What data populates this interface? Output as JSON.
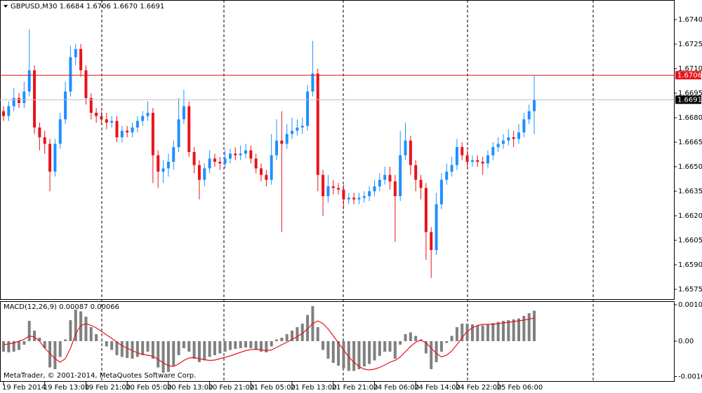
{
  "chart_data": [
    {
      "type": "candlestick",
      "title": "GBPUSD,M30  1.6684 1.6706 1.6670 1.6691",
      "footer": "MetaTrader, © 2001-2014, MetaQuotes Software Corp.",
      "categories": [
        "19 Feb 2014",
        null,
        null,
        null,
        null,
        null,
        null,
        null,
        "19 Feb 13:00",
        null,
        null,
        null,
        null,
        null,
        null,
        null,
        "19 Feb 21:00",
        null,
        null,
        null,
        null,
        null,
        null,
        null,
        "20 Feb 05:00",
        null,
        null,
        null,
        null,
        null,
        null,
        null,
        "20 Feb 13:00",
        null,
        null,
        null,
        null,
        null,
        null,
        null,
        "20 Feb 21:00",
        null,
        null,
        null,
        null,
        null,
        null,
        null,
        "21 Feb 05:00",
        null,
        null,
        null,
        null,
        null,
        null,
        null,
        "21 Feb 13:00",
        null,
        null,
        null,
        null,
        null,
        null,
        null,
        "21 Feb 21:00",
        null,
        null,
        null,
        null,
        null,
        null,
        null,
        "24 Feb 06:00",
        null,
        null,
        null,
        null,
        null,
        null,
        null,
        "24 Feb 14:00",
        null,
        null,
        null,
        null,
        null,
        null,
        null,
        "24 Feb 22:00",
        null,
        null,
        null,
        null,
        null,
        null,
        null,
        "25 Feb 06:00",
        null,
        null,
        null,
        null,
        null,
        null,
        null
      ],
      "open": [
        1.6684,
        1.6681,
        1.6687,
        1.6692,
        1.6689,
        1.6696,
        1.6709,
        1.6674,
        1.6668,
        1.6664,
        1.6647,
        1.6664,
        1.6679,
        1.6696,
        1.6717,
        1.6722,
        1.6709,
        1.6692,
        1.6683,
        1.6681,
        1.6679,
        1.6677,
        1.6678,
        1.6668,
        1.6672,
        1.6671,
        1.6674,
        1.6678,
        1.6681,
        1.6683,
        1.6657,
        1.6647,
        1.6649,
        1.6653,
        1.6662,
        1.6679,
        1.6687,
        1.6659,
        1.6651,
        1.6642,
        1.6649,
        1.6655,
        1.6653,
        1.6652,
        1.6655,
        1.6658,
        1.6657,
        1.6658,
        1.666,
        1.6655,
        1.6649,
        1.6645,
        1.6642,
        1.6657,
        1.6666,
        1.6664,
        1.667,
        1.6672,
        1.6674,
        1.6675,
        1.6696,
        1.6707,
        1.6645,
        1.6632,
        1.6638,
        1.6637,
        1.6636,
        1.663,
        1.6631,
        1.663,
        1.6631,
        1.6632,
        1.6635,
        1.6638,
        1.6642,
        1.6645,
        1.6641,
        1.6632,
        1.6657,
        1.6666,
        1.6651,
        1.6642,
        1.6637,
        1.661,
        1.6599,
        1.6627,
        1.6642,
        1.6647,
        1.6651,
        1.6662,
        1.6657,
        1.6653,
        1.6654,
        1.6653,
        1.6652,
        1.6657,
        1.6662,
        1.6664,
        1.6666,
        1.6668,
        1.6667,
        1.6671,
        1.6679,
        1.6684
      ],
      "high": [
        1.6687,
        1.669,
        1.6698,
        1.6695,
        1.6702,
        1.6734,
        1.6712,
        1.6677,
        1.6672,
        1.6667,
        1.6667,
        1.6683,
        1.6702,
        1.6724,
        1.6725,
        1.6725,
        1.6712,
        1.6695,
        1.6686,
        1.6684,
        1.6683,
        1.6681,
        1.6681,
        1.6675,
        1.6675,
        1.6677,
        1.6681,
        1.6684,
        1.669,
        1.6686,
        1.666,
        1.6654,
        1.6658,
        1.6666,
        1.6692,
        1.6697,
        1.669,
        1.6662,
        1.6654,
        1.6652,
        1.666,
        1.6658,
        1.6656,
        1.666,
        1.6661,
        1.6662,
        1.6663,
        1.6664,
        1.6663,
        1.6658,
        1.6652,
        1.6648,
        1.667,
        1.6679,
        1.6684,
        1.6676,
        1.668,
        1.6679,
        1.668,
        1.67,
        1.6727,
        1.671,
        1.6648,
        1.6645,
        1.6642,
        1.664,
        1.6639,
        1.6634,
        1.6634,
        1.6634,
        1.6635,
        1.6638,
        1.6642,
        1.6646,
        1.665,
        1.665,
        1.6645,
        1.6672,
        1.6677,
        1.6669,
        1.6654,
        1.6645,
        1.664,
        1.6613,
        1.6634,
        1.6646,
        1.6652,
        1.6656,
        1.6667,
        1.6665,
        1.666,
        1.6657,
        1.6657,
        1.6656,
        1.666,
        1.6665,
        1.6668,
        1.667,
        1.6673,
        1.6672,
        1.6676,
        1.6683,
        1.6688,
        1.6706
      ],
      "low": [
        1.6678,
        1.6678,
        1.6684,
        1.6686,
        1.6686,
        1.6693,
        1.667,
        1.666,
        1.6658,
        1.6635,
        1.6644,
        1.6661,
        1.6676,
        1.6693,
        1.6712,
        1.6705,
        1.6688,
        1.6679,
        1.6677,
        1.6676,
        1.6673,
        1.6674,
        1.6665,
        1.6665,
        1.6668,
        1.6668,
        1.6671,
        1.6675,
        1.6678,
        1.664,
        1.6637,
        1.664,
        1.6644,
        1.6648,
        1.6659,
        1.6676,
        1.6656,
        1.6646,
        1.663,
        1.6638,
        1.6646,
        1.665,
        1.6648,
        1.6649,
        1.6652,
        1.6654,
        1.6654,
        1.6655,
        1.6652,
        1.6646,
        1.6641,
        1.6638,
        1.6639,
        1.6654,
        1.661,
        1.6661,
        1.6667,
        1.6669,
        1.667,
        1.6672,
        1.6693,
        1.6635,
        1.662,
        1.6628,
        1.6633,
        1.6633,
        1.6624,
        1.6627,
        1.6627,
        1.6627,
        1.6628,
        1.6629,
        1.6632,
        1.6635,
        1.6639,
        1.6636,
        1.6604,
        1.6629,
        1.6654,
        1.6645,
        1.6635,
        1.663,
        1.6593,
        1.6582,
        1.6596,
        1.6624,
        1.6639,
        1.6644,
        1.6648,
        1.6654,
        1.665,
        1.665,
        1.665,
        1.6645,
        1.6649,
        1.6654,
        1.6659,
        1.6661,
        1.6663,
        1.6662,
        1.6664,
        1.6668,
        1.6676,
        1.667
      ],
      "close": [
        1.6681,
        1.6687,
        1.6692,
        1.6689,
        1.6696,
        1.6709,
        1.6674,
        1.6668,
        1.6664,
        1.6647,
        1.6664,
        1.6679,
        1.6696,
        1.6717,
        1.6722,
        1.6709,
        1.6692,
        1.6683,
        1.6681,
        1.6679,
        1.6677,
        1.6678,
        1.6668,
        1.6672,
        1.6671,
        1.6674,
        1.6678,
        1.6681,
        1.6683,
        1.6657,
        1.6647,
        1.6649,
        1.6653,
        1.6662,
        1.6679,
        1.6687,
        1.6659,
        1.6651,
        1.6642,
        1.6649,
        1.6655,
        1.6653,
        1.6652,
        1.6655,
        1.6658,
        1.6657,
        1.6658,
        1.666,
        1.6655,
        1.6649,
        1.6645,
        1.6642,
        1.6657,
        1.6666,
        1.6664,
        1.667,
        1.6672,
        1.6674,
        1.6675,
        1.6696,
        1.6707,
        1.6645,
        1.6632,
        1.6638,
        1.6637,
        1.6636,
        1.663,
        1.6631,
        1.663,
        1.6631,
        1.6632,
        1.6635,
        1.6638,
        1.6642,
        1.6645,
        1.6641,
        1.6632,
        1.6657,
        1.6666,
        1.6651,
        1.6642,
        1.6637,
        1.661,
        1.6599,
        1.6627,
        1.6642,
        1.6647,
        1.6651,
        1.6662,
        1.6657,
        1.6653,
        1.6654,
        1.6653,
        1.6652,
        1.6657,
        1.6662,
        1.6664,
        1.6666,
        1.6668,
        1.6667,
        1.6671,
        1.6679,
        1.6684,
        1.6691
      ],
      "up_color": "#1e90ff",
      "down_color": "#e8141a",
      "price_lines": [
        {
          "value": 1.6706,
          "color": "#e8141a"
        },
        {
          "value": 1.6691,
          "color": "#000000"
        }
      ],
      "ylim": [
        1.6569,
        1.6752
      ],
      "yticks": [
        {
          "value": 1.674,
          "label": "1.6740"
        },
        1.6725,
        {
          "value": 1.671,
          "label": "1.6710"
        },
        1.6695,
        {
          "value": 1.668,
          "label": "1.6680"
        },
        1.6665,
        {
          "value": 1.665,
          "label": "1.6650"
        },
        1.6635,
        {
          "value": 1.662,
          "label": "1.6620"
        },
        1.6605,
        {
          "value": 1.659,
          "label": "1.6590"
        },
        1.6575
      ]
    },
    {
      "type": "macd",
      "title": "MACD(12,26,9) 0.00087 0.00066",
      "series": [
        {
          "name": "MACD",
          "color": "#808080",
          "values": [
            -0.0003,
            -0.00032,
            -0.0003,
            -0.00025,
            -0.0001,
            0.00058,
            0.0003,
            0.0001,
            -0.0002,
            -0.00075,
            -0.0008,
            -0.00045,
            5e-05,
            0.0006,
            0.0009,
            0.00085,
            0.0007,
            0.0004,
            0.0002,
            0,
            -0.00015,
            -0.00025,
            -0.0004,
            -0.00045,
            -0.00048,
            -0.0005,
            -0.00045,
            -0.0004,
            -0.0003,
            -0.0005,
            -0.00075,
            -0.0009,
            -0.00088,
            -0.0007,
            -0.0004,
            -0.0002,
            -0.0003,
            -0.0005,
            -0.0006,
            -0.00055,
            -0.00045,
            -0.0004,
            -0.00035,
            -0.0003,
            -0.00025,
            -0.00022,
            -0.0002,
            -0.00018,
            -0.0002,
            -0.00025,
            -0.0003,
            -0.00032,
            -0.00015,
            5e-05,
            0.0001,
            0.0002,
            0.0003,
            0.0004,
            0.0005,
            0.00075,
            0.001,
            0.0004,
            -0.00025,
            -0.0005,
            -0.00062,
            -0.0007,
            -0.00078,
            -0.00085,
            -0.00085,
            -0.0008,
            -0.00072,
            -0.00065,
            -0.00055,
            -0.00042,
            -0.0003,
            -0.0003,
            -0.0005,
            -0.0001,
            0.0002,
            0.00025,
            0.00015,
            5e-05,
            -0.00035,
            -0.0008,
            -0.0006,
            -0.0003,
            -5e-05,
            0.00015,
            0.0004,
            0.0005,
            0.0005,
            0.00048,
            0.00045,
            0.00045,
            0.00048,
            0.00052,
            0.00055,
            0.00058,
            0.0006,
            0.00062,
            0.00065,
            0.00072,
            0.0008,
            0.00087
          ]
        },
        {
          "name": "Signal",
          "color": "#e8141a",
          "values": [
            -0.0001,
            -8e-05,
            -5e-05,
            0,
            5e-05,
            0.00015,
            0.00012,
            0,
            -0.0002,
            -0.00035,
            -0.0005,
            -0.0006,
            -0.0005,
            -0.0002,
            0.0002,
            0.00045,
            0.0005,
            0.00045,
            0.00038,
            0.00028,
            0.00018,
            8e-05,
            -3e-05,
            -0.00013,
            -0.0002,
            -0.00027,
            -0.00033,
            -0.00038,
            -0.0004,
            -0.00043,
            -0.00052,
            -0.00062,
            -0.0007,
            -0.00072,
            -0.00065,
            -0.00055,
            -0.00048,
            -0.00047,
            -0.0005,
            -0.00053,
            -0.00055,
            -0.00054,
            -0.0005,
            -0.00046,
            -0.00042,
            -0.00037,
            -0.00032,
            -0.00027,
            -0.00024,
            -0.00023,
            -0.00025,
            -0.00027,
            -0.00025,
            -0.00018,
            -0.0001,
            -3e-05,
            5e-05,
            0.00013,
            0.00022,
            0.00035,
            0.0005,
            0.00058,
            0.0005,
            0.00035,
            0.00015,
            -5e-05,
            -0.00025,
            -0.00045,
            -0.0006,
            -0.00072,
            -0.0008,
            -0.00082,
            -0.0008,
            -0.00075,
            -0.00068,
            -0.0006,
            -0.00055,
            -0.00045,
            -0.0003,
            -0.00015,
            -3e-05,
            3e-05,
            -5e-05,
            -0.0002,
            -0.00035,
            -0.00045,
            -0.0004,
            -0.00028,
            -0.0001,
            0.0001,
            0.00028,
            0.00038,
            0.00045,
            0.00048,
            0.00048,
            0.00048,
            0.0005,
            0.00052,
            0.00054,
            0.00056,
            0.00058,
            0.0006,
            0.00063,
            0.00066
          ]
        }
      ],
      "ylim": [
        -0.00116,
        0.00114
      ],
      "yticks": [
        0.00104,
        {
          "value": 0,
          "label": "0.00"
        },
        -0.00101
      ]
    }
  ]
}
